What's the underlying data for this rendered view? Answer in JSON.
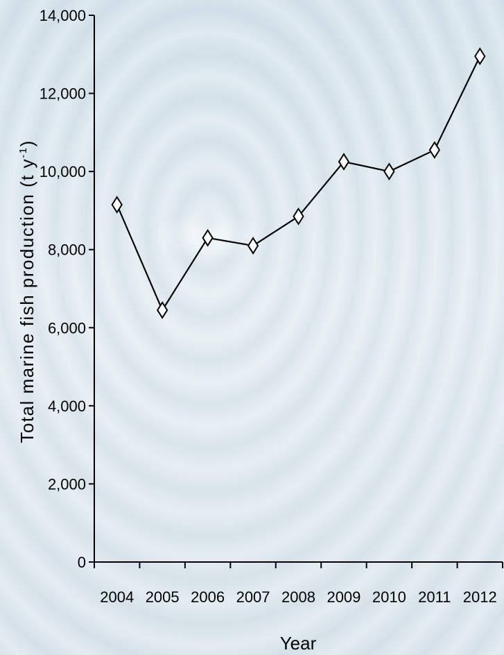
{
  "chart_data": {
    "type": "line",
    "categories": [
      "2004",
      "2005",
      "2006",
      "2007",
      "2008",
      "2009",
      "2010",
      "2011",
      "2012"
    ],
    "series": [
      {
        "values": [
          9150,
          6450,
          8300,
          8100,
          8850,
          10250,
          10000,
          10550,
          12950
        ]
      }
    ],
    "xlabel": "Year",
    "ylabel_main": "Total marine fish production (t y",
    "ylabel_sup": "-1",
    "ylabel_end": ")",
    "ylim": [
      0,
      14000
    ],
    "yticks": [
      "0",
      "2,000",
      "4,000",
      "6,000",
      "8,000",
      "10,000",
      "12,000",
      "14,000"
    ],
    "ytick_values": [
      0,
      2000,
      4000,
      6000,
      8000,
      10000,
      12000,
      14000
    ],
    "marker": "diamond-open",
    "grid": false,
    "line_color": "#000000"
  }
}
